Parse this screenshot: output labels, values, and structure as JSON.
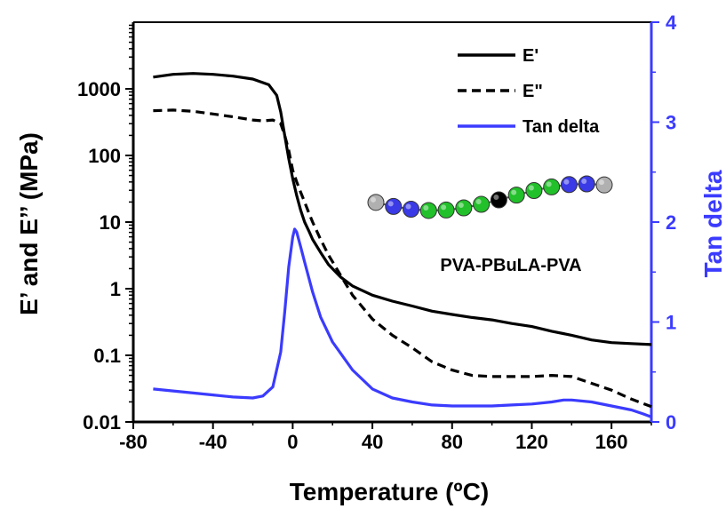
{
  "chart_data": {
    "type": "line",
    "xlabel": "Temperature (ºC)",
    "ylabel_left": "E’ and E’’ (MPa)",
    "ylabel_right": "Tan delta",
    "x_ticks": [
      "-80",
      "-40",
      "0",
      "40",
      "80",
      "120",
      "160"
    ],
    "x_tick_values": [
      -80,
      -40,
      0,
      40,
      80,
      120,
      160
    ],
    "xlim": [
      -80,
      180
    ],
    "y_left_scale": "log",
    "y_left_ticks": [
      "0.01",
      "0.1",
      "1",
      "10",
      "100",
      "1000"
    ],
    "y_left_tick_values": [
      0.01,
      0.1,
      1,
      10,
      100,
      1000
    ],
    "y_left_lim": [
      0.01,
      10000
    ],
    "y_right_ticks": [
      "0",
      "1",
      "2",
      "3",
      "4"
    ],
    "y_right_tick_values": [
      0,
      1,
      2,
      3,
      4
    ],
    "y_right_lim": [
      0,
      4
    ],
    "grid": false,
    "legend_position": "top-right",
    "annotation": "PVA-PBuLA-PVA",
    "series": [
      {
        "name": "E'",
        "axis": "left",
        "color": "#000000",
        "style": "solid",
        "x": [
          -70,
          -60,
          -50,
          -40,
          -30,
          -20,
          -12,
          -8,
          -6,
          -4,
          -2,
          0,
          2,
          4,
          6,
          8,
          10,
          14,
          18,
          24,
          30,
          40,
          50,
          60,
          70,
          80,
          90,
          100,
          110,
          120,
          130,
          140,
          150,
          160,
          170,
          180
        ],
        "y": [
          1500,
          1650,
          1700,
          1650,
          1550,
          1400,
          1150,
          800,
          450,
          200,
          90,
          45,
          25,
          15,
          10,
          7.5,
          5.5,
          3.5,
          2.3,
          1.5,
          1.1,
          0.8,
          0.65,
          0.55,
          0.46,
          0.41,
          0.37,
          0.34,
          0.3,
          0.27,
          0.23,
          0.2,
          0.17,
          0.155,
          0.15,
          0.145
        ]
      },
      {
        "name": "E\"",
        "axis": "left",
        "color": "#000000",
        "style": "dashed",
        "x": [
          -70,
          -60,
          -50,
          -40,
          -30,
          -20,
          -15,
          -10,
          -6,
          -4,
          -2,
          0,
          2,
          4,
          6,
          8,
          10,
          14,
          18,
          24,
          30,
          40,
          50,
          60,
          70,
          80,
          90,
          100,
          110,
          120,
          130,
          140,
          150,
          160,
          170,
          180
        ],
        "y": [
          470,
          480,
          460,
          420,
          380,
          340,
          330,
          340,
          300,
          200,
          120,
          60,
          40,
          28,
          20,
          14,
          10,
          5.5,
          3.2,
          1.6,
          0.8,
          0.35,
          0.2,
          0.13,
          0.08,
          0.06,
          0.05,
          0.048,
          0.048,
          0.048,
          0.05,
          0.048,
          0.038,
          0.03,
          0.022,
          0.017
        ]
      },
      {
        "name": "Tan delta",
        "axis": "right",
        "color": "#3b3bff",
        "style": "solid",
        "x": [
          -70,
          -60,
          -50,
          -40,
          -30,
          -20,
          -15,
          -10,
          -6,
          -4,
          -2,
          0,
          1,
          2,
          4,
          6,
          8,
          10,
          14,
          20,
          30,
          40,
          50,
          60,
          70,
          80,
          90,
          100,
          110,
          120,
          130,
          136,
          140,
          150,
          160,
          170,
          176,
          180
        ],
        "y": [
          0.33,
          0.31,
          0.29,
          0.27,
          0.25,
          0.24,
          0.26,
          0.35,
          0.7,
          1.1,
          1.55,
          1.85,
          1.93,
          1.9,
          1.75,
          1.6,
          1.45,
          1.3,
          1.05,
          0.8,
          0.52,
          0.33,
          0.24,
          0.2,
          0.17,
          0.16,
          0.16,
          0.16,
          0.17,
          0.18,
          0.2,
          0.22,
          0.22,
          0.2,
          0.16,
          0.12,
          0.08,
          0.05
        ]
      }
    ]
  },
  "molecule": {
    "description": "bead chain",
    "end_color": "#b0b0b0",
    "a_color": "#3a3ae6",
    "b_color": "#22c02a",
    "link_color": "#000000",
    "beads": [
      "end",
      "a",
      "a",
      "b",
      "b",
      "b",
      "b",
      "link",
      "b",
      "b",
      "b",
      "a",
      "a",
      "end"
    ]
  }
}
